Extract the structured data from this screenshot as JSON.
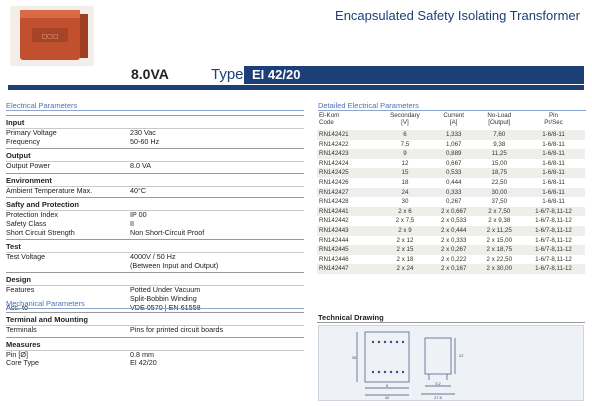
{
  "header": {
    "title": "Encapsulated Safety Isolating Transformer",
    "power": "8.0VA",
    "type_label": "Type",
    "type_value": "EI 42/20"
  },
  "colors": {
    "accent": "#1c3f77",
    "section": "#4a73b5",
    "product": "#c0502e"
  },
  "electrical": {
    "heading": "Electrical Parameters",
    "groups": [
      {
        "title": "Input",
        "rows": [
          [
            "Primary Voltage",
            "230 Vac"
          ],
          [
            "Frequency",
            "50-60 Hz"
          ]
        ]
      },
      {
        "title": "Output",
        "rows": [
          [
            "Output Power",
            "8.0 VA"
          ]
        ]
      },
      {
        "title": "Environment",
        "rows": [
          [
            "Ambient Temperature Max.",
            "40°C"
          ]
        ]
      },
      {
        "title": "Safty and Protection",
        "rows": [
          [
            "Protection Index",
            "IP 00"
          ],
          [
            "Safety Class",
            "II"
          ],
          [
            "Short Circuit Strength",
            "Non Short-Circuit Proof"
          ]
        ]
      },
      {
        "title": "Test",
        "rows": [
          [
            "Test Voltage",
            "4000V / 50 Hz"
          ],
          [
            "",
            "(Between Input and Output)"
          ]
        ]
      },
      {
        "title": "Design",
        "rows": [
          [
            "Features",
            "Potted Under Vacuum"
          ],
          [
            "",
            "Split-Bobbin Winding"
          ],
          [
            "Acc. to",
            "VDE 0570 | EN 61558"
          ]
        ]
      }
    ]
  },
  "mechanical": {
    "heading": "Mechanical Parameters",
    "groups": [
      {
        "title": "Terminal and Mounting",
        "rows": [
          [
            "Terminals",
            "Pins for printed circuit boards"
          ]
        ]
      },
      {
        "title": "Measures",
        "rows": [
          [
            "Pin [Ø]",
            "0.8 mm"
          ],
          [
            "Core Type",
            "EI 42/20"
          ]
        ]
      }
    ]
  },
  "detailed": {
    "heading": "Detailed Electrical Parameters",
    "columns": [
      [
        "El-Kom",
        "Code"
      ],
      [
        "Secondary",
        "[V]"
      ],
      [
        "Current",
        "[A]"
      ],
      [
        "No-Load",
        "[Output]"
      ],
      [
        "Pin",
        "Pr/Sec"
      ]
    ],
    "rows": [
      [
        "RN142421",
        "6",
        "1,333",
        "7,60",
        "1-6/8-11"
      ],
      [
        "RN142422",
        "7,5",
        "1,067",
        "9,38",
        "1-6/8-11"
      ],
      [
        "RN142423",
        "9",
        "0,889",
        "11,25",
        "1-6/8-11"
      ],
      [
        "RN142424",
        "12",
        "0,667",
        "15,00",
        "1-6/8-11"
      ],
      [
        "RN142425",
        "15",
        "0,533",
        "18,75",
        "1-6/8-11"
      ],
      [
        "RN142426",
        "18",
        "0,444",
        "22,50",
        "1-6/8-11"
      ],
      [
        "RN142427",
        "24",
        "0,333",
        "30,00",
        "1-6/8-11"
      ],
      [
        "RN142428",
        "30",
        "0,267",
        "37,50",
        "1-6/8-11"
      ],
      [
        "RN142441",
        "2 x 6",
        "2 x 0,667",
        "2 x 7,50",
        "1-6/7-8,11-12"
      ],
      [
        "RN142442",
        "2 x 7,5",
        "2 x 0,533",
        "2 x 9,38",
        "1-6/7-8,11-12"
      ],
      [
        "RN142443",
        "2 x 9",
        "2 x 0,444",
        "2 x 11,25",
        "1-6/7-8,11-12"
      ],
      [
        "RN142444",
        "2 x 12",
        "2 x 0,333",
        "2 x 15,00",
        "1-6/7-8,11-12"
      ],
      [
        "RN142445",
        "2 x 15",
        "2 x 0,267",
        "2 x 18,75",
        "1-6/7-8,11-12"
      ],
      [
        "RN142446",
        "2 x 18",
        "2 x 0,222",
        "2 x 22,50",
        "1-6/7-8,11-12"
      ],
      [
        "RN142447",
        "2 x 24",
        "2 x 0,167",
        "2 x 30,00",
        "1-6/7-8,11-12"
      ]
    ]
  },
  "technical": {
    "heading": "Technical Drawing",
    "dims": {
      "width": "42",
      "height": "35",
      "pitch": "5",
      "side": "27.5",
      "depth": "22",
      "pin": "3.2"
    }
  }
}
